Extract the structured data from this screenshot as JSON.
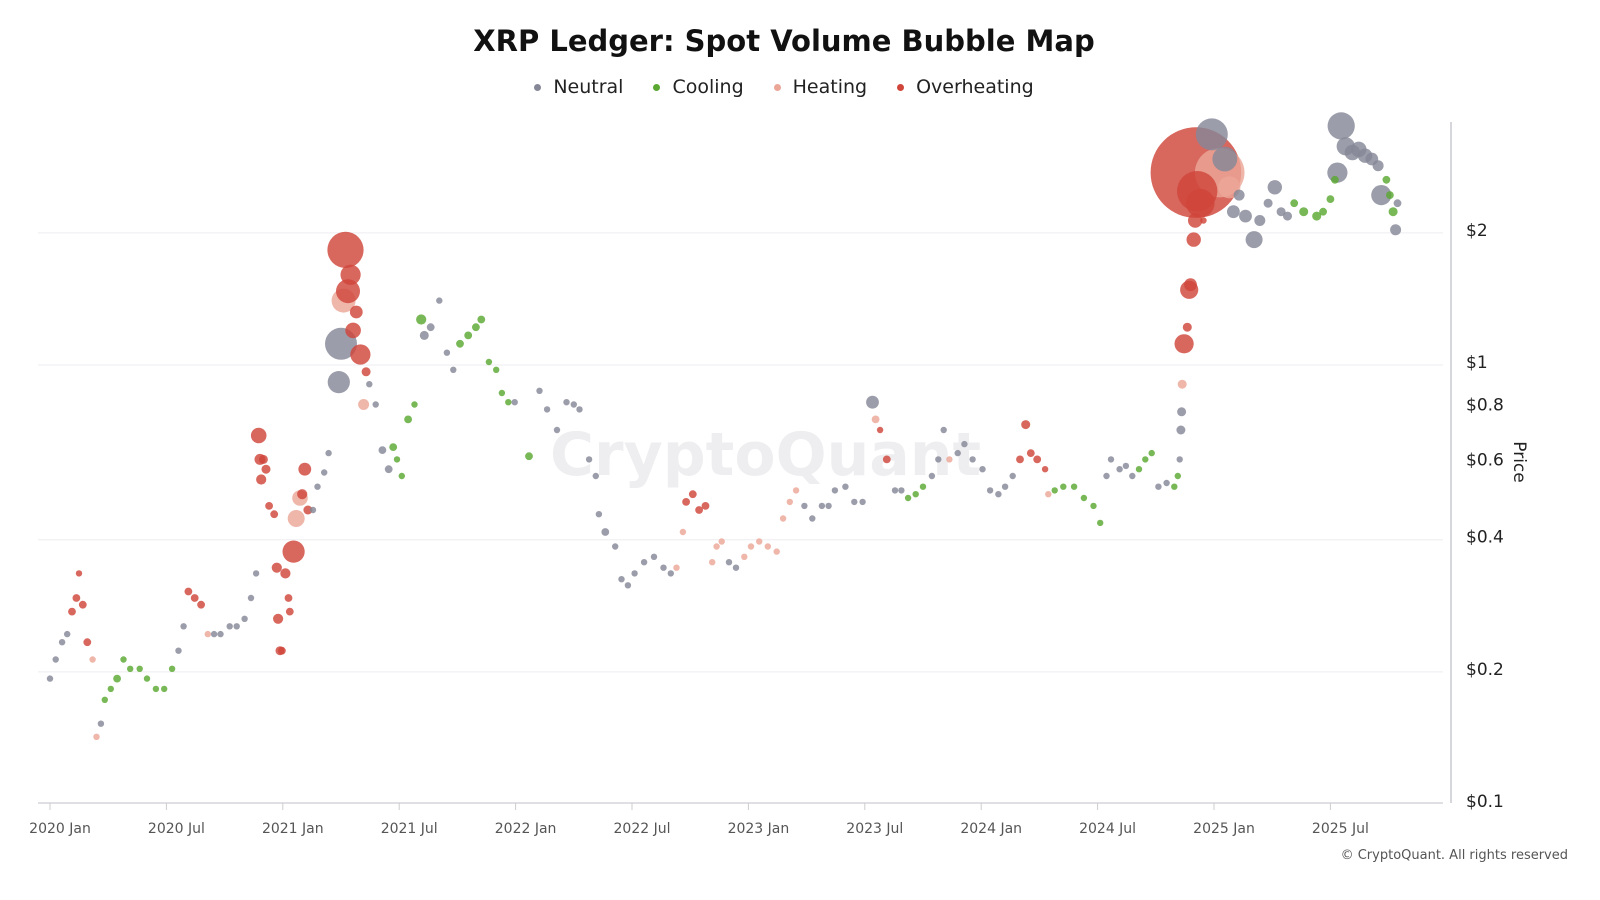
{
  "chart_data": {
    "type": "scatter",
    "title": "XRP Ledger: Spot Volume Bubble Map",
    "ylabel": "Price",
    "yscale": "log",
    "ylim": [
      0.1,
      4
    ],
    "yticks": [
      {
        "v": 2,
        "label": "$2"
      },
      {
        "v": 1,
        "label": "$1"
      },
      {
        "v": 0.8,
        "label": "$0.8"
      },
      {
        "v": 0.6,
        "label": "$0.6"
      },
      {
        "v": 0.4,
        "label": "$0.4"
      },
      {
        "v": 0.2,
        "label": "$0.2"
      },
      {
        "v": 0.1,
        "label": "$0.1"
      }
    ],
    "ygrid": [
      2,
      1,
      0.4,
      0.2
    ],
    "xticks": [
      {
        "d": "2020-01-01",
        "label": "2020 Jan"
      },
      {
        "d": "2020-07-01",
        "label": "2020 Jul"
      },
      {
        "d": "2021-01-01",
        "label": "2021 Jan"
      },
      {
        "d": "2021-07-01",
        "label": "2021 Jul"
      },
      {
        "d": "2022-01-01",
        "label": "2022 Jan"
      },
      {
        "d": "2022-07-01",
        "label": "2022 Jul"
      },
      {
        "d": "2023-01-01",
        "label": "2023 Jan"
      },
      {
        "d": "2023-07-01",
        "label": "2023 Jul"
      },
      {
        "d": "2024-01-01",
        "label": "2024 Jan"
      },
      {
        "d": "2024-07-01",
        "label": "2024 Jul"
      },
      {
        "d": "2025-01-01",
        "label": "2025 Jan"
      },
      {
        "d": "2025-07-01",
        "label": "2025 Jul"
      }
    ],
    "legend_position": "top-center",
    "categories": {
      "N": {
        "name": "Neutral",
        "color": "#858797"
      },
      "C": {
        "name": "Cooling",
        "color": "#5aa832"
      },
      "H": {
        "name": "Heating",
        "color": "#eba697"
      },
      "O": {
        "name": "Overheating",
        "color": "#d0463a"
      }
    },
    "point_fields": [
      "date",
      "price",
      "category",
      "relative_volume"
    ],
    "points": [
      [
        "2020-01-01",
        0.19,
        "N",
        1
      ],
      [
        "2020-01-10",
        0.21,
        "N",
        1
      ],
      [
        "2020-01-20",
        0.23,
        "N",
        1
      ],
      [
        "2020-01-28",
        0.24,
        "N",
        1
      ],
      [
        "2020-02-05",
        0.27,
        "O",
        1.5
      ],
      [
        "2020-02-12",
        0.29,
        "O",
        1.5
      ],
      [
        "2020-02-16",
        0.33,
        "O",
        1
      ],
      [
        "2020-02-22",
        0.28,
        "O",
        1.5
      ],
      [
        "2020-02-29",
        0.23,
        "O",
        1.5
      ],
      [
        "2020-03-07",
        0.21,
        "H",
        1
      ],
      [
        "2020-03-13",
        0.14,
        "H",
        1
      ],
      [
        "2020-03-20",
        0.15,
        "N",
        1
      ],
      [
        "2020-03-26",
        0.17,
        "C",
        1
      ],
      [
        "2020-04-05",
        0.18,
        "C",
        1
      ],
      [
        "2020-04-15",
        0.19,
        "C",
        1.5
      ],
      [
        "2020-04-25",
        0.21,
        "C",
        1
      ],
      [
        "2020-05-05",
        0.2,
        "C",
        1
      ],
      [
        "2020-05-20",
        0.2,
        "C",
        1
      ],
      [
        "2020-06-01",
        0.19,
        "C",
        1
      ],
      [
        "2020-06-15",
        0.18,
        "C",
        1
      ],
      [
        "2020-06-28",
        0.18,
        "C",
        1
      ],
      [
        "2020-07-10",
        0.2,
        "C",
        1
      ],
      [
        "2020-07-20",
        0.22,
        "N",
        1
      ],
      [
        "2020-07-28",
        0.25,
        "N",
        1
      ],
      [
        "2020-08-05",
        0.3,
        "O",
        1.5
      ],
      [
        "2020-08-15",
        0.29,
        "O",
        1.5
      ],
      [
        "2020-08-25",
        0.28,
        "O",
        1.5
      ],
      [
        "2020-09-05",
        0.24,
        "H",
        1
      ],
      [
        "2020-09-15",
        0.24,
        "N",
        1
      ],
      [
        "2020-09-25",
        0.24,
        "N",
        1
      ],
      [
        "2020-10-09",
        0.25,
        "N",
        1
      ],
      [
        "2020-10-20",
        0.25,
        "N",
        1
      ],
      [
        "2020-11-02",
        0.26,
        "N",
        1
      ],
      [
        "2020-11-12",
        0.29,
        "N",
        1
      ],
      [
        "2020-11-20",
        0.33,
        "N",
        1
      ],
      [
        "2020-11-24",
        0.68,
        "O",
        6
      ],
      [
        "2020-11-26",
        0.6,
        "O",
        3
      ],
      [
        "2020-11-28",
        0.54,
        "O",
        2.5
      ],
      [
        "2020-12-01",
        0.6,
        "O",
        2
      ],
      [
        "2020-12-05",
        0.57,
        "O",
        2
      ],
      [
        "2020-12-10",
        0.47,
        "O",
        1.5
      ],
      [
        "2020-12-18",
        0.45,
        "O",
        1.5
      ],
      [
        "2020-12-22",
        0.34,
        "O",
        2.5
      ],
      [
        "2020-12-24",
        0.26,
        "O",
        2.5
      ],
      [
        "2020-12-27",
        0.22,
        "O",
        2
      ],
      [
        "2020-12-30",
        0.22,
        "O",
        1.5
      ],
      [
        "2021-01-05",
        0.33,
        "O",
        2.5
      ],
      [
        "2021-01-10",
        0.29,
        "O",
        1.5
      ],
      [
        "2021-01-12",
        0.27,
        "O",
        1.5
      ],
      [
        "2021-01-18",
        0.37,
        "O",
        12
      ],
      [
        "2021-01-22",
        0.44,
        "H",
        7
      ],
      [
        "2021-01-28",
        0.49,
        "H",
        6
      ],
      [
        "2021-02-01",
        0.5,
        "O",
        2.5
      ],
      [
        "2021-02-05",
        0.57,
        "O",
        4
      ],
      [
        "2021-02-10",
        0.46,
        "O",
        2
      ],
      [
        "2021-02-18",
        0.46,
        "N",
        1
      ],
      [
        "2021-02-25",
        0.52,
        "N",
        1
      ],
      [
        "2021-03-05",
        0.56,
        "N",
        1
      ],
      [
        "2021-03-12",
        0.62,
        "N",
        1
      ],
      [
        "2021-03-28",
        0.9,
        "N",
        12
      ],
      [
        "2021-04-01",
        1.1,
        "N",
        25
      ],
      [
        "2021-04-05",
        1.38,
        "H",
        14
      ],
      [
        "2021-04-08",
        1.8,
        "O",
        32
      ],
      [
        "2021-04-12",
        1.45,
        "O",
        14
      ],
      [
        "2021-04-16",
        1.58,
        "O",
        10
      ],
      [
        "2021-04-20",
        1.18,
        "O",
        6
      ],
      [
        "2021-04-25",
        1.3,
        "O",
        4
      ],
      [
        "2021-05-01",
        1.04,
        "O",
        10
      ],
      [
        "2021-05-06",
        0.8,
        "H",
        3
      ],
      [
        "2021-05-10",
        0.95,
        "O",
        2
      ],
      [
        "2021-05-15",
        0.89,
        "N",
        1
      ],
      [
        "2021-05-25",
        0.8,
        "N",
        1
      ],
      [
        "2021-06-05",
        0.63,
        "N",
        1.5
      ],
      [
        "2021-06-15",
        0.57,
        "N",
        1.5
      ],
      [
        "2021-06-22",
        0.64,
        "C",
        1.5
      ],
      [
        "2021-06-28",
        0.6,
        "C",
        1
      ],
      [
        "2021-07-05",
        0.55,
        "C",
        1
      ],
      [
        "2021-07-15",
        0.74,
        "C",
        1.5
      ],
      [
        "2021-07-25",
        0.8,
        "C",
        1
      ],
      [
        "2021-08-05",
        1.25,
        "C",
        2.5
      ],
      [
        "2021-08-10",
        1.15,
        "N",
        2
      ],
      [
        "2021-08-20",
        1.2,
        "N",
        1.5
      ],
      [
        "2021-09-03",
        1.38,
        "N",
        1
      ],
      [
        "2021-09-15",
        1.05,
        "N",
        1
      ],
      [
        "2021-09-25",
        0.96,
        "N",
        1
      ],
      [
        "2021-10-05",
        1.1,
        "C",
        1.5
      ],
      [
        "2021-10-18",
        1.15,
        "C",
        1.5
      ],
      [
        "2021-10-30",
        1.2,
        "C",
        1.5
      ],
      [
        "2021-11-08",
        1.25,
        "C",
        1.5
      ],
      [
        "2021-11-20",
        1.0,
        "C",
        1
      ],
      [
        "2021-12-01",
        0.96,
        "C",
        1
      ],
      [
        "2021-12-10",
        0.85,
        "C",
        1
      ],
      [
        "2021-12-20",
        0.81,
        "C",
        1
      ],
      [
        "2021-12-30",
        0.81,
        "N",
        1
      ],
      [
        "2022-01-22",
        0.61,
        "C",
        1.5
      ],
      [
        "2022-02-08",
        0.86,
        "N",
        1
      ],
      [
        "2022-02-20",
        0.78,
        "N",
        1
      ],
      [
        "2022-03-05",
        0.7,
        "N",
        1
      ],
      [
        "2022-03-20",
        0.81,
        "N",
        1
      ],
      [
        "2022-04-01",
        0.8,
        "N",
        1
      ],
      [
        "2022-04-10",
        0.78,
        "N",
        1
      ],
      [
        "2022-04-25",
        0.6,
        "N",
        1
      ],
      [
        "2022-05-05",
        0.55,
        "N",
        1
      ],
      [
        "2022-05-10",
        0.45,
        "N",
        1
      ],
      [
        "2022-05-20",
        0.41,
        "N",
        1.5
      ],
      [
        "2022-06-05",
        0.38,
        "N",
        1
      ],
      [
        "2022-06-15",
        0.32,
        "N",
        1
      ],
      [
        "2022-06-25",
        0.31,
        "N",
        1
      ],
      [
        "2022-07-05",
        0.33,
        "N",
        1
      ],
      [
        "2022-07-20",
        0.35,
        "N",
        1
      ],
      [
        "2022-08-05",
        0.36,
        "N",
        1
      ],
      [
        "2022-08-20",
        0.34,
        "N",
        1
      ],
      [
        "2022-09-01",
        0.33,
        "N",
        1
      ],
      [
        "2022-09-10",
        0.34,
        "H",
        1
      ],
      [
        "2022-09-20",
        0.41,
        "H",
        1
      ],
      [
        "2022-09-25",
        0.48,
        "O",
        1.5
      ],
      [
        "2022-10-05",
        0.5,
        "O",
        1.5
      ],
      [
        "2022-10-15",
        0.46,
        "O",
        1.5
      ],
      [
        "2022-10-25",
        0.47,
        "O",
        1.5
      ],
      [
        "2022-11-05",
        0.35,
        "H",
        1
      ],
      [
        "2022-11-12",
        0.38,
        "H",
        1
      ],
      [
        "2022-11-20",
        0.39,
        "H",
        1
      ],
      [
        "2022-12-01",
        0.35,
        "N",
        1
      ],
      [
        "2022-12-12",
        0.34,
        "N",
        1
      ],
      [
        "2022-12-25",
        0.36,
        "H",
        1
      ],
      [
        "2023-01-05",
        0.38,
        "H",
        1
      ],
      [
        "2023-01-18",
        0.39,
        "H",
        1
      ],
      [
        "2023-02-01",
        0.38,
        "H",
        1
      ],
      [
        "2023-02-15",
        0.37,
        "H",
        1
      ],
      [
        "2023-02-25",
        0.44,
        "H",
        1
      ],
      [
        "2023-03-05",
        0.48,
        "H",
        1
      ],
      [
        "2023-03-15",
        0.51,
        "H",
        1
      ],
      [
        "2023-03-28",
        0.47,
        "N",
        1
      ],
      [
        "2023-04-10",
        0.44,
        "N",
        1
      ],
      [
        "2023-04-25",
        0.47,
        "N",
        1
      ],
      [
        "2023-05-05",
        0.47,
        "N",
        1
      ],
      [
        "2023-05-15",
        0.51,
        "N",
        1
      ],
      [
        "2023-06-01",
        0.52,
        "N",
        1
      ],
      [
        "2023-06-15",
        0.48,
        "N",
        1
      ],
      [
        "2023-06-28",
        0.48,
        "N",
        1
      ],
      [
        "2023-07-13",
        0.81,
        "N",
        4
      ],
      [
        "2023-07-18",
        0.74,
        "H",
        1.5
      ],
      [
        "2023-07-25",
        0.7,
        "O",
        1
      ],
      [
        "2023-08-05",
        0.6,
        "O",
        1.5
      ],
      [
        "2023-08-18",
        0.51,
        "N",
        1
      ],
      [
        "2023-08-28",
        0.51,
        "N",
        1
      ],
      [
        "2023-09-08",
        0.49,
        "C",
        1
      ],
      [
        "2023-09-20",
        0.5,
        "C",
        1
      ],
      [
        "2023-10-01",
        0.52,
        "C",
        1
      ],
      [
        "2023-10-15",
        0.55,
        "N",
        1
      ],
      [
        "2023-10-25",
        0.6,
        "N",
        1
      ],
      [
        "2023-11-03",
        0.7,
        "N",
        1
      ],
      [
        "2023-11-12",
        0.6,
        "H",
        1
      ],
      [
        "2023-11-25",
        0.62,
        "N",
        1
      ],
      [
        "2023-12-05",
        0.65,
        "N",
        1
      ],
      [
        "2023-12-18",
        0.6,
        "N",
        1
      ],
      [
        "2024-01-03",
        0.57,
        "N",
        1
      ],
      [
        "2024-01-15",
        0.51,
        "N",
        1
      ],
      [
        "2024-01-28",
        0.5,
        "N",
        1
      ],
      [
        "2024-02-08",
        0.52,
        "N",
        1
      ],
      [
        "2024-02-20",
        0.55,
        "N",
        1
      ],
      [
        "2024-03-01",
        0.6,
        "O",
        1.5
      ],
      [
        "2024-03-10",
        0.72,
        "O",
        2
      ],
      [
        "2024-03-18",
        0.62,
        "O",
        1.5
      ],
      [
        "2024-03-28",
        0.6,
        "O",
        1.5
      ],
      [
        "2024-04-10",
        0.57,
        "O",
        1
      ],
      [
        "2024-04-15",
        0.5,
        "H",
        1
      ],
      [
        "2024-04-25",
        0.51,
        "C",
        1
      ],
      [
        "2024-05-08",
        0.52,
        "C",
        1
      ],
      [
        "2024-05-25",
        0.52,
        "C",
        1
      ],
      [
        "2024-06-10",
        0.49,
        "C",
        1
      ],
      [
        "2024-06-25",
        0.47,
        "C",
        1
      ],
      [
        "2024-07-05",
        0.43,
        "C",
        1
      ],
      [
        "2024-07-15",
        0.55,
        "N",
        1
      ],
      [
        "2024-07-22",
        0.6,
        "N",
        1
      ],
      [
        "2024-08-05",
        0.57,
        "N",
        1
      ],
      [
        "2024-08-15",
        0.58,
        "N",
        1
      ],
      [
        "2024-08-25",
        0.55,
        "N",
        1
      ],
      [
        "2024-09-05",
        0.57,
        "C",
        1
      ],
      [
        "2024-09-15",
        0.6,
        "C",
        1
      ],
      [
        "2024-09-25",
        0.62,
        "C",
        1
      ],
      [
        "2024-10-05",
        0.52,
        "N",
        1
      ],
      [
        "2024-10-18",
        0.53,
        "N",
        1
      ],
      [
        "2024-10-30",
        0.52,
        "C",
        1
      ],
      [
        "2024-11-05",
        0.55,
        "C",
        1
      ],
      [
        "2024-11-08",
        0.6,
        "N",
        1
      ],
      [
        "2024-11-10",
        0.7,
        "N",
        2
      ],
      [
        "2024-11-11",
        0.77,
        "N",
        2
      ],
      [
        "2024-11-12",
        0.89,
        "H",
        2
      ],
      [
        "2024-11-15",
        1.1,
        "O",
        9
      ],
      [
        "2024-11-20",
        1.2,
        "O",
        2
      ],
      [
        "2024-11-23",
        1.46,
        "O",
        8
      ],
      [
        "2024-11-25",
        1.5,
        "O",
        4
      ],
      [
        "2024-11-30",
        1.9,
        "O",
        5
      ],
      [
        "2024-12-02",
        2.1,
        "O",
        5
      ],
      [
        "2024-12-03",
        2.7,
        "O",
        200
      ],
      [
        "2024-12-05",
        2.45,
        "O",
        40
      ],
      [
        "2024-12-10",
        2.3,
        "O",
        20
      ],
      [
        "2024-12-15",
        2.1,
        "O",
        1
      ],
      [
        "2024-12-28",
        3.3,
        "N",
        25
      ],
      [
        "2025-01-10",
        2.7,
        "H",
        60
      ],
      [
        "2025-01-18",
        2.9,
        "N",
        15
      ],
      [
        "2025-01-25",
        2.5,
        "H",
        12
      ],
      [
        "2025-02-01",
        2.2,
        "N",
        4
      ],
      [
        "2025-02-10",
        2.4,
        "N",
        3
      ],
      [
        "2025-02-20",
        2.15,
        "N",
        4
      ],
      [
        "2025-03-03",
        1.9,
        "N",
        7
      ],
      [
        "2025-03-12",
        2.1,
        "N",
        3
      ],
      [
        "2025-03-25",
        2.3,
        "N",
        2
      ],
      [
        "2025-04-05",
        2.5,
        "N",
        5
      ],
      [
        "2025-04-15",
        2.2,
        "N",
        2
      ],
      [
        "2025-04-25",
        2.15,
        "N",
        2
      ],
      [
        "2025-05-05",
        2.3,
        "C",
        1.5
      ],
      [
        "2025-05-20",
        2.2,
        "C",
        2
      ],
      [
        "2025-06-10",
        2.15,
        "C",
        2
      ],
      [
        "2025-06-20",
        2.2,
        "C",
        1.5
      ],
      [
        "2025-07-01",
        2.35,
        "C",
        1.5
      ],
      [
        "2025-07-08",
        2.6,
        "C",
        1.5
      ],
      [
        "2025-07-12",
        2.7,
        "N",
        10
      ],
      [
        "2025-07-18",
        3.45,
        "N",
        18
      ],
      [
        "2025-07-25",
        3.1,
        "N",
        8
      ],
      [
        "2025-08-05",
        3.0,
        "N",
        6
      ],
      [
        "2025-08-15",
        3.05,
        "N",
        6
      ],
      [
        "2025-08-25",
        2.95,
        "N",
        5
      ],
      [
        "2025-09-05",
        2.9,
        "N",
        4
      ],
      [
        "2025-09-15",
        2.8,
        "N",
        3
      ],
      [
        "2025-09-20",
        2.4,
        "N",
        10
      ],
      [
        "2025-09-28",
        2.6,
        "C",
        1.5
      ],
      [
        "2025-10-03",
        2.4,
        "C",
        1.5
      ],
      [
        "2025-10-08",
        2.2,
        "C",
        2
      ],
      [
        "2025-10-12",
        2.0,
        "N",
        3
      ],
      [
        "2025-10-15",
        2.3,
        "N",
        1.5
      ]
    ]
  },
  "legend": [
    "Neutral",
    "Cooling",
    "Heating",
    "Overheating"
  ],
  "watermark": "CryptoQuant",
  "credit": "© CryptoQuant. All rights reserved"
}
